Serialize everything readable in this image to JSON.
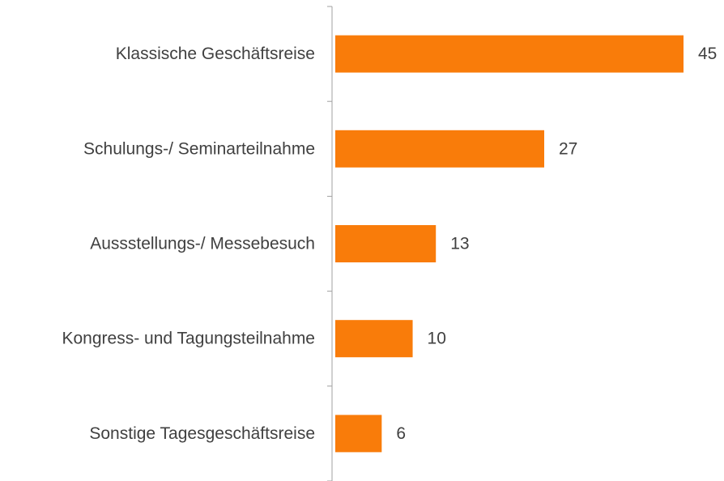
{
  "chart_data": {
    "type": "bar",
    "orientation": "horizontal",
    "categories": [
      "Klassische Geschäftsreise",
      "Schulungs-/ Seminarteilnahme",
      "Aussstellungs-/ Messebesuch",
      "Kongress- und Tagungsteilnahme",
      "Sonstige Tagesgeschäftsreise"
    ],
    "values": [
      45,
      27,
      13,
      10,
      6
    ],
    "color": "#f97c0a"
  }
}
